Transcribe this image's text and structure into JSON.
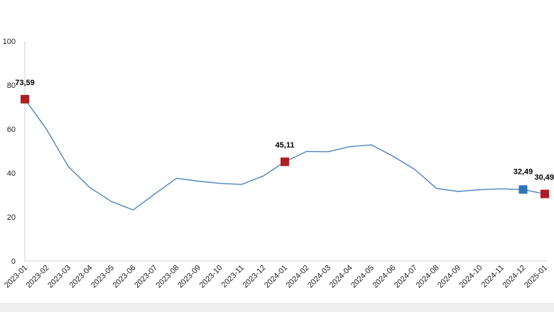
{
  "chart_data": {
    "type": "line",
    "title": "",
    "xlabel": "",
    "ylabel": "",
    "ylim": [
      0,
      100
    ],
    "y_ticks": [
      "0",
      "20",
      "40",
      "60",
      "80",
      "100"
    ],
    "grid": false,
    "legend": "none",
    "line_color": "#4a84bd",
    "categories": [
      "2023-01",
      "2023-02",
      "2023-03",
      "2023-04",
      "2023-05",
      "2023-06",
      "2023-07",
      "2023-08",
      "2023-09",
      "2023-10",
      "2023-11",
      "2023-12",
      "2024-01",
      "2024-02",
      "2024-03",
      "2024-04",
      "2024-05",
      "2024-06",
      "2024-07",
      "2024-08",
      "2024-09",
      "2024-10",
      "2024-11",
      "2024-12",
      "2025-01"
    ],
    "values": [
      73.59,
      59.9,
      43.0,
      33.4,
      27.0,
      23.2,
      30.5,
      37.6,
      36.3,
      35.3,
      34.8,
      38.6,
      45.11,
      49.8,
      49.7,
      52.0,
      52.8,
      47.6,
      41.6,
      33.0,
      31.6,
      32.4,
      32.8,
      32.49,
      30.49
    ],
    "highlights": [
      {
        "index": 0,
        "label": "73,59",
        "color": "#b01e24"
      },
      {
        "index": 12,
        "label": "45,11",
        "color": "#b01e24"
      },
      {
        "index": 23,
        "label": "32,49",
        "color": "#2e75b6"
      },
      {
        "index": 24,
        "label": "30,49",
        "color": "#b01e24"
      }
    ]
  }
}
